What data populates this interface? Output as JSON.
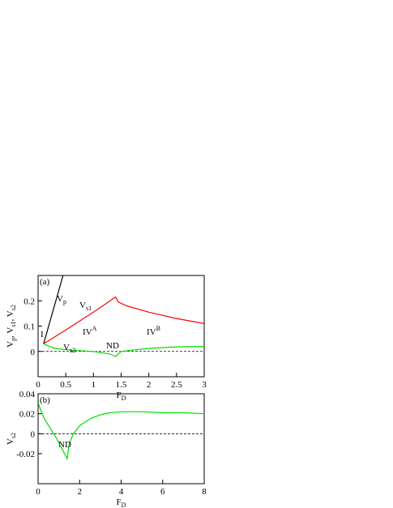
{
  "chart_data": [
    {
      "type": "line",
      "panel_label": "(a)",
      "xlabel": {
        "text": "F",
        "sub": "D"
      },
      "ylabel": [
        {
          "text": "V",
          "sub": "p"
        },
        {
          "text": ", V",
          "sub": "s1"
        },
        {
          "text": ", V",
          "sub": "s2"
        }
      ],
      "xlim": [
        0,
        3
      ],
      "ylim": [
        -0.1,
        0.3
      ],
      "xticks": [
        0,
        0.5,
        1,
        1.5,
        2,
        2.5,
        3
      ],
      "yticks": [
        0,
        0.1,
        0.2
      ],
      "hline": 0,
      "series": [
        {
          "color": "#000000",
          "x": [
            0.1,
            0.45
          ],
          "values": [
            0.03,
            0.3
          ]
        },
        {
          "color": "#ff0000",
          "x": [
            0.1,
            0.5,
            1.0,
            1.4,
            1.45,
            1.6,
            2.0,
            2.5,
            3.0
          ],
          "values": [
            0.03,
            0.085,
            0.155,
            0.215,
            0.195,
            0.18,
            0.155,
            0.13,
            0.11
          ]
        },
        {
          "color": "#00dd00",
          "x": [
            0.1,
            0.3,
            0.6,
            1.0,
            1.3,
            1.4,
            1.5,
            2.0,
            2.5,
            3.0
          ],
          "values": [
            0.03,
            0.012,
            0.005,
            0.0,
            -0.01,
            -0.02,
            0.0,
            0.012,
            0.018,
            0.02
          ]
        }
      ],
      "annotations": [
        {
          "text": "V",
          "sub": "p"
        },
        {
          "text": "V",
          "sub": "s1"
        },
        {
          "text": "I"
        },
        {
          "text": "IV",
          "sup": "A"
        },
        {
          "text": "V",
          "sub": "s2"
        },
        {
          "text": "ND"
        },
        {
          "text": "IV",
          "sup": "B"
        }
      ]
    },
    {
      "type": "line",
      "panel_label": "(b)",
      "xlabel": {
        "text": "F",
        "sub": "D"
      },
      "ylabel": [
        {
          "text": "V",
          "sub": "s2"
        }
      ],
      "xlim": [
        0,
        8
      ],
      "ylim": [
        -0.05,
        0.04
      ],
      "xticks": [
        0,
        2,
        4,
        6,
        8
      ],
      "yticks": [
        -0.02,
        0,
        0.02,
        0.04
      ],
      "hline": 0,
      "series": [
        {
          "color": "#00dd00",
          "x": [
            0.02,
            0.1,
            0.3,
            0.6,
            0.9,
            1.2,
            1.4,
            1.5,
            1.7,
            2.0,
            2.5,
            3,
            3.5,
            4,
            5,
            6,
            7,
            8
          ],
          "values": [
            0.03,
            0.025,
            0.015,
            0.005,
            -0.005,
            -0.017,
            -0.025,
            -0.01,
            0.0,
            0.008,
            0.015,
            0.019,
            0.021,
            0.022,
            0.022,
            0.021,
            0.021,
            0.02
          ]
        }
      ],
      "annotations": [
        {
          "text": "ND"
        }
      ]
    }
  ]
}
